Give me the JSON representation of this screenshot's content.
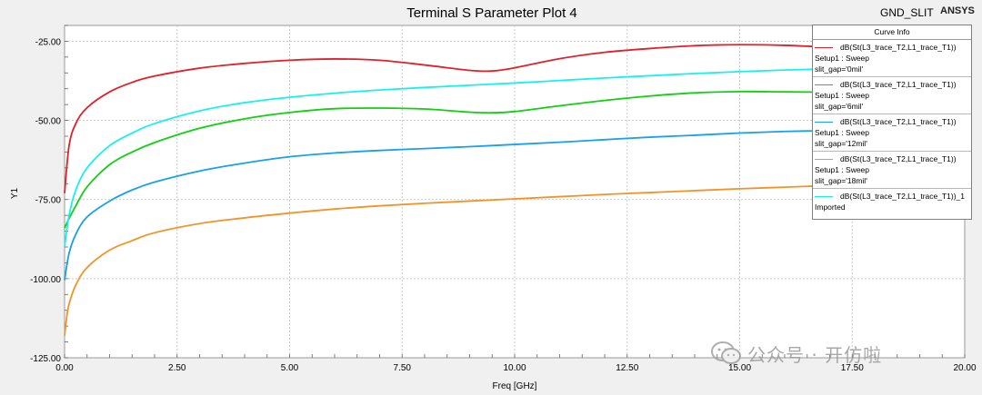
{
  "chart_data": {
    "type": "line",
    "title": "Terminal S Parameter Plot 4",
    "design_label": "GND_SLIT",
    "brand": "ANSYS",
    "xlabel": "Freq [GHz]",
    "ylabel": "Y1",
    "xlim": [
      0,
      20
    ],
    "ylim": [
      -125,
      -20
    ],
    "x_ticks": [
      "0.00",
      "2.50",
      "5.00",
      "7.50",
      "10.00",
      "12.50",
      "15.00",
      "17.50",
      "20.00"
    ],
    "y_ticks": [
      "-25.00",
      "-50.00",
      "-75.00",
      "-100.00",
      "-125.00"
    ],
    "y_tick_values": [
      -25,
      -50,
      -75,
      -100,
      -125
    ],
    "x_tick_values": [
      0,
      2.5,
      5,
      7.5,
      10,
      12.5,
      15,
      17.5,
      20
    ],
    "grid": true,
    "legend_position": "top-right",
    "legend_title": "Curve Info",
    "series": [
      {
        "name": "dB(St(L3_trace_T2,L1_trace_T1))",
        "sub": [
          "Setup1 : Sweep",
          "slit_gap='0mil'"
        ],
        "color": "#e0202a",
        "x": [
          0,
          0.1,
          0.25,
          0.5,
          1,
          1.5,
          2,
          3,
          4,
          5,
          6,
          7,
          8,
          9,
          9.5,
          10,
          11,
          12,
          13,
          14,
          15,
          16,
          17,
          18
        ],
        "values": [
          -73,
          -58,
          -51,
          -46,
          -41,
          -38,
          -36,
          -33.5,
          -32,
          -31,
          -30.6,
          -31,
          -32.5,
          -34.2,
          -34.4,
          -33.4,
          -30.5,
          -28.5,
          -27.3,
          -26.4,
          -26.1,
          -26.3,
          -26.9,
          -27.6
        ]
      },
      {
        "name": "dB(St(L3_trace_T2,L1_trace_T1))",
        "sub": [
          "Setup1 : Sweep",
          "slit_gap='6mil'"
        ],
        "color": "#10d010",
        "x": [
          0,
          0.1,
          0.25,
          0.5,
          1,
          1.5,
          2,
          3,
          4,
          5,
          6,
          7,
          8,
          9,
          9.5,
          10,
          11,
          12,
          13,
          14,
          15,
          16,
          17,
          18
        ],
        "values": [
          -84,
          -81,
          -77,
          -71,
          -64,
          -60,
          -57,
          -52.5,
          -49.5,
          -47.5,
          -46.3,
          -46.1,
          -46.4,
          -47.4,
          -47.6,
          -47.2,
          -45.4,
          -43.7,
          -42.3,
          -41.3,
          -40.9,
          -41,
          -41.1,
          -41.4
        ]
      },
      {
        "name": "dB(St(L3_trace_T2,L1_trace_T1))",
        "sub": [
          "Setup1 : Sweep",
          "slit_gap='12mil'"
        ],
        "color": "#18a0e8",
        "x": [
          0,
          0.1,
          0.25,
          0.5,
          1,
          1.5,
          2,
          3,
          4,
          5,
          6,
          7,
          8,
          9,
          10,
          11,
          12,
          13,
          14,
          15,
          16,
          17,
          18
        ],
        "values": [
          -100.5,
          -92,
          -86,
          -80.5,
          -75.5,
          -72,
          -69.5,
          -66,
          -63.5,
          -61.5,
          -60.3,
          -59.5,
          -58.9,
          -58.3,
          -57.6,
          -56.9,
          -56.1,
          -55.3,
          -54.7,
          -54,
          -53.5,
          -53.2,
          -53
        ]
      },
      {
        "name": "dB(St(L3_trace_T2,L1_trace_T1))",
        "sub": [
          "Setup1 : Sweep",
          "slit_gap='18mil'"
        ],
        "color": "#f09428",
        "x": [
          0,
          0.05,
          0.1,
          0.25,
          0.5,
          1,
          1.5,
          2,
          3,
          4,
          5,
          6,
          7,
          8,
          9,
          10,
          11,
          12,
          13,
          14,
          15,
          16,
          17,
          18
        ],
        "values": [
          -118,
          -112,
          -108,
          -102,
          -96.5,
          -91,
          -88,
          -85.5,
          -82.6,
          -80.8,
          -79.3,
          -78,
          -77,
          -76.2,
          -75.5,
          -74.8,
          -74.1,
          -73.4,
          -72.8,
          -72.2,
          -71.6,
          -71.1,
          -70.6,
          -70.2
        ]
      },
      {
        "name": "dB(St(L3_trace_T2,L1_trace_T1))_1",
        "sub": [
          "Imported"
        ],
        "color": "#18f0f0",
        "x": [
          0,
          0.1,
          0.25,
          0.5,
          1,
          1.5,
          2,
          3,
          4,
          5,
          6,
          7,
          8,
          9,
          10,
          11,
          12,
          13,
          14,
          15,
          16,
          17,
          18
        ],
        "values": [
          -90,
          -80,
          -72,
          -65,
          -58,
          -54,
          -51,
          -47,
          -44.4,
          -42.7,
          -41.4,
          -40.4,
          -39.6,
          -38.9,
          -38.2,
          -37.4,
          -36.6,
          -35.9,
          -35.2,
          -34.6,
          -34.1,
          -33.7,
          -33.3
        ]
      }
    ]
  },
  "watermark": {
    "text": "公众号 · 开仿啦",
    "icon": "wechat-icon"
  }
}
